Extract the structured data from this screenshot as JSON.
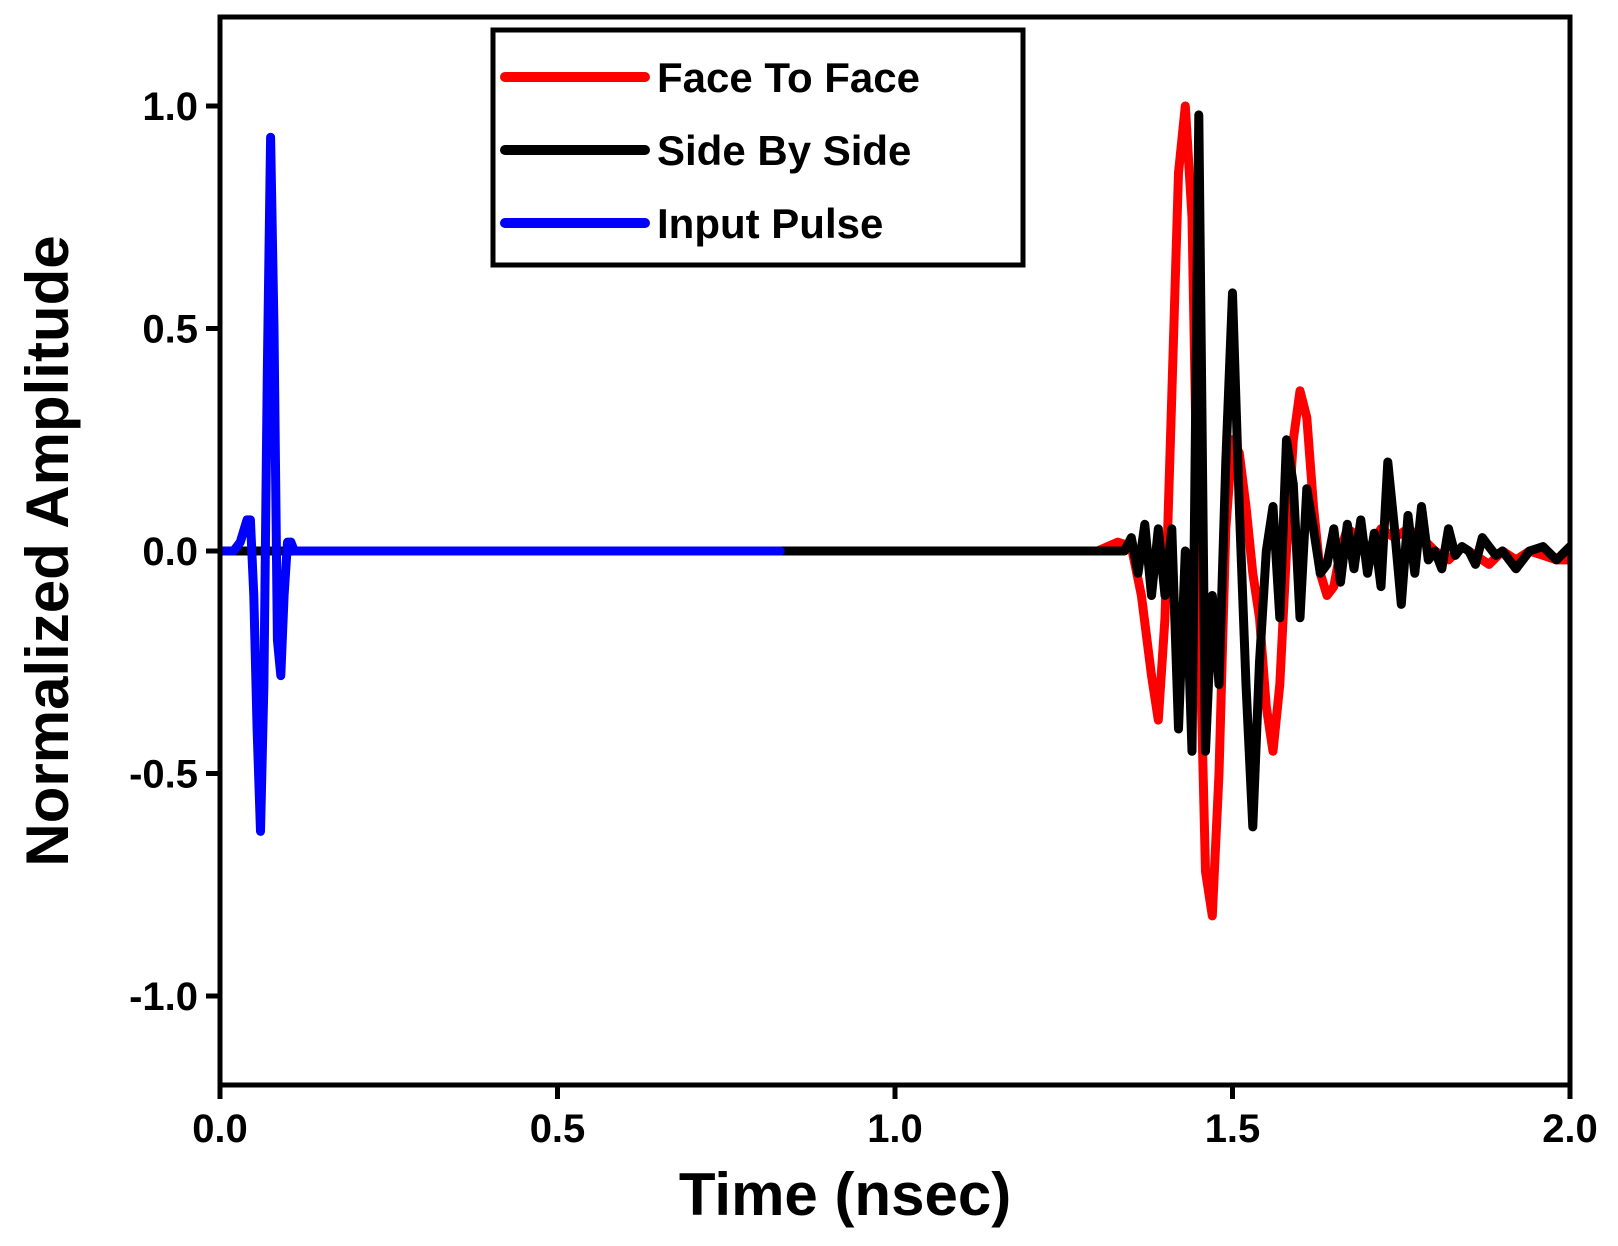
{
  "chart_data": {
    "type": "line",
    "title": "",
    "xlabel": "Time (nsec)",
    "ylabel": "Normalized Amplitude",
    "xlim": [
      0,
      2
    ],
    "ylim": [
      -1.2,
      1.2
    ],
    "xticks": [
      0,
      0.5,
      1,
      1.5,
      2
    ],
    "xtick_labels": [
      "0.0",
      "0.5",
      "1.0",
      "1.5",
      "2.0"
    ],
    "yticks": [
      -1,
      -0.5,
      0,
      0.5,
      1
    ],
    "ytick_labels": [
      "-1.0",
      "-0.5",
      "0.0",
      "0.5",
      "1.0"
    ],
    "grid": false,
    "legend_position": "top-center",
    "series": [
      {
        "name": "Face To Face",
        "color": "#ff0000",
        "x": [
          0,
          1.3,
          1.33,
          1.35,
          1.365,
          1.38,
          1.39,
          1.4,
          1.41,
          1.42,
          1.43,
          1.44,
          1.45,
          1.46,
          1.47,
          1.48,
          1.49,
          1.5,
          1.51,
          1.52,
          1.53,
          1.54,
          1.55,
          1.56,
          1.57,
          1.58,
          1.59,
          1.6,
          1.61,
          1.62,
          1.63,
          1.64,
          1.65,
          1.66,
          1.67,
          1.68,
          1.69,
          1.7,
          1.72,
          1.74,
          1.76,
          1.78,
          1.8,
          1.82,
          1.84,
          1.86,
          1.88,
          1.9,
          1.92,
          1.94,
          1.96,
          1.98,
          2.0
        ],
        "y": [
          0,
          0,
          0.02,
          0.01,
          -0.1,
          -0.28,
          -0.38,
          -0.15,
          0.35,
          0.85,
          1.0,
          0.75,
          -0.1,
          -0.72,
          -0.82,
          -0.5,
          0.05,
          0.25,
          0.22,
          0.1,
          -0.05,
          -0.15,
          -0.35,
          -0.45,
          -0.3,
          0.0,
          0.25,
          0.36,
          0.3,
          0.1,
          -0.05,
          -0.1,
          -0.08,
          0.0,
          0.05,
          0.04,
          0.02,
          0.0,
          0.05,
          0.03,
          0.05,
          0.03,
          0.0,
          -0.02,
          0.01,
          -0.01,
          -0.03,
          0.0,
          -0.02,
          0.0,
          -0.01,
          -0.02,
          -0.02
        ]
      },
      {
        "name": "Side By Side",
        "color": "#000000",
        "x": [
          0,
          1.34,
          1.35,
          1.36,
          1.37,
          1.38,
          1.39,
          1.4,
          1.41,
          1.42,
          1.43,
          1.44,
          1.45,
          1.46,
          1.47,
          1.48,
          1.49,
          1.5,
          1.51,
          1.52,
          1.53,
          1.54,
          1.55,
          1.56,
          1.57,
          1.58,
          1.59,
          1.6,
          1.61,
          1.62,
          1.63,
          1.64,
          1.65,
          1.66,
          1.67,
          1.68,
          1.69,
          1.7,
          1.71,
          1.72,
          1.73,
          1.74,
          1.75,
          1.76,
          1.77,
          1.78,
          1.79,
          1.8,
          1.81,
          1.82,
          1.83,
          1.84,
          1.85,
          1.86,
          1.87,
          1.88,
          1.89,
          1.9,
          1.92,
          1.94,
          1.96,
          1.98,
          2.0
        ],
        "y": [
          0,
          0,
          0.03,
          -0.05,
          0.06,
          -0.1,
          0.05,
          -0.1,
          0.05,
          -0.4,
          0.0,
          -0.45,
          0.98,
          -0.45,
          -0.1,
          -0.3,
          0.2,
          0.58,
          0.1,
          -0.3,
          -0.62,
          -0.25,
          0.0,
          0.1,
          -0.15,
          0.25,
          0.15,
          -0.15,
          0.14,
          0.05,
          -0.05,
          -0.03,
          0.05,
          -0.07,
          0.06,
          -0.04,
          0.07,
          -0.05,
          0.04,
          -0.08,
          0.2,
          0.05,
          -0.12,
          0.08,
          -0.05,
          0.1,
          -0.02,
          0.0,
          -0.04,
          0.05,
          -0.01,
          0.01,
          0.0,
          -0.03,
          0.03,
          0.01,
          -0.01,
          0.0,
          -0.04,
          0.0,
          0.01,
          -0.02,
          0.01
        ]
      },
      {
        "name": "Input Pulse",
        "color": "#0000ff",
        "x": [
          0,
          0.02,
          0.03,
          0.04,
          0.045,
          0.05,
          0.055,
          0.06,
          0.065,
          0.07,
          0.075,
          0.08,
          0.085,
          0.09,
          0.095,
          0.1,
          0.105,
          0.11,
          0.115,
          0.12,
          0.125,
          0.13,
          0.14,
          0.83
        ],
        "y": [
          0,
          0,
          0.02,
          0.07,
          0.07,
          -0.1,
          -0.4,
          -0.63,
          -0.3,
          0.4,
          0.93,
          0.5,
          -0.2,
          -0.28,
          -0.1,
          0.02,
          0.02,
          0.0,
          0.0,
          0.0,
          0.0,
          0.0,
          0.0,
          0.0
        ]
      }
    ]
  }
}
